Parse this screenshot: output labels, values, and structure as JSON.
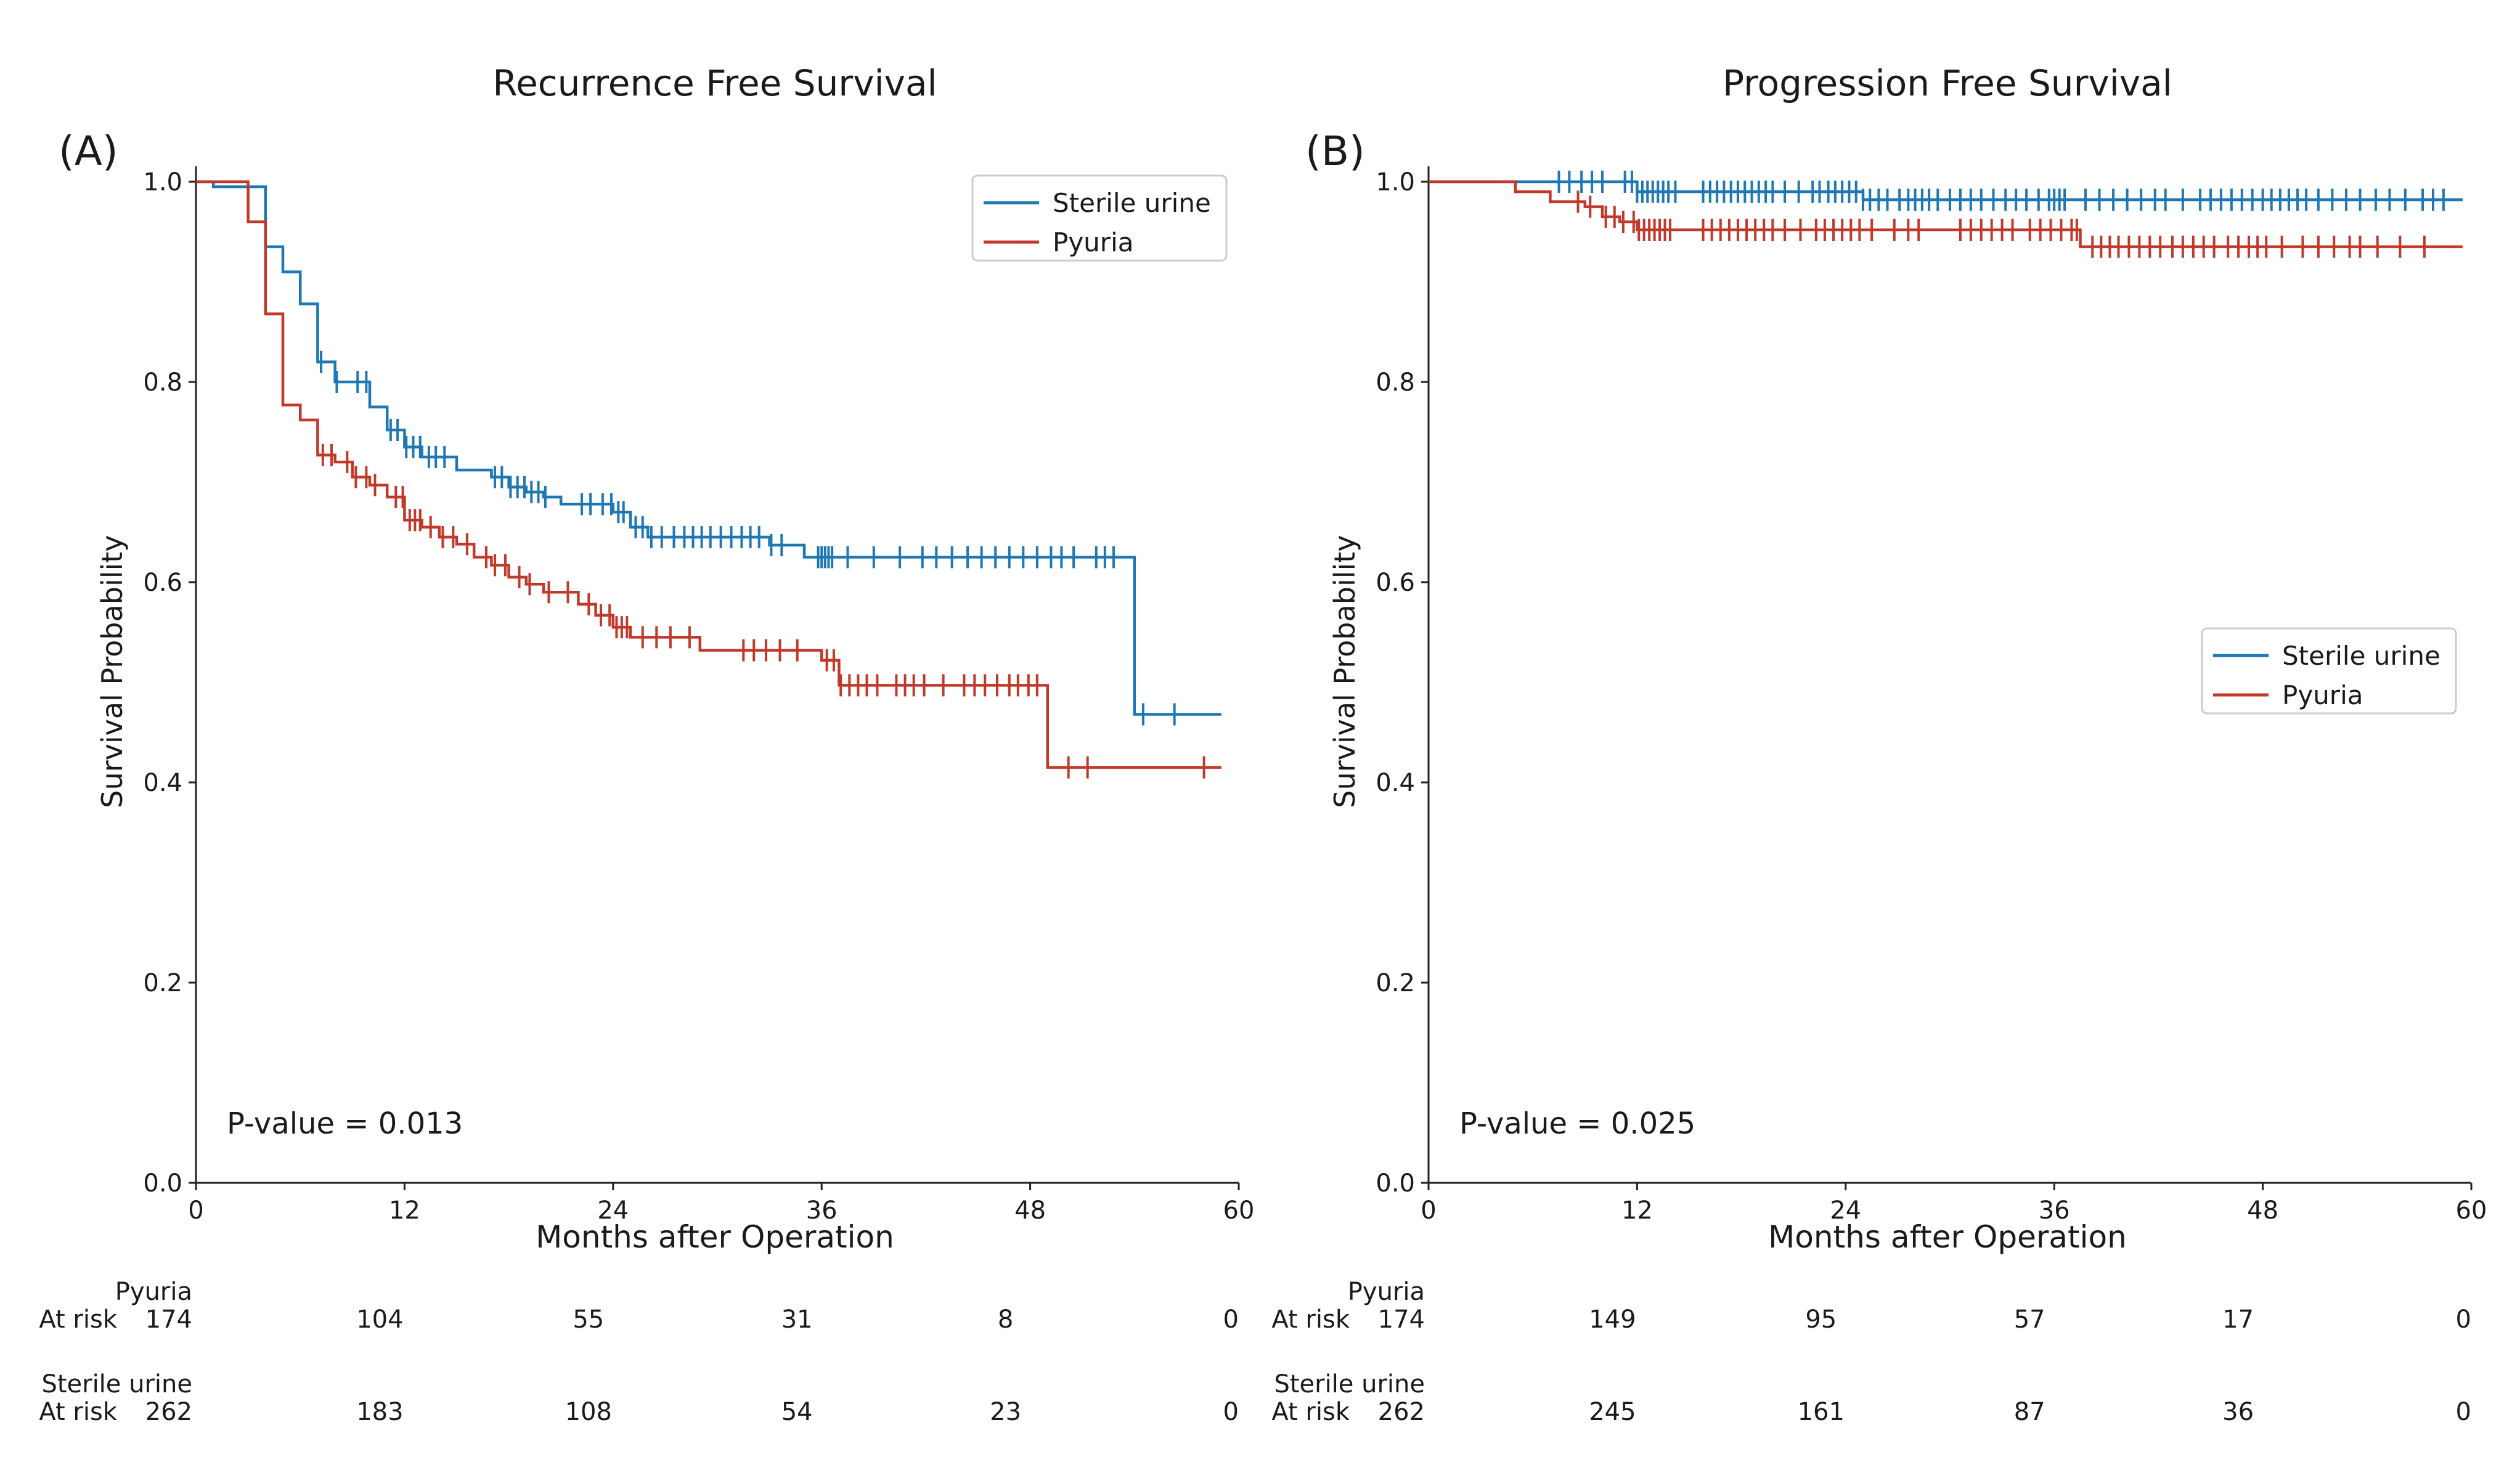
{
  "chart_data": [
    {
      "type": "line",
      "subtype": "kaplan-meier",
      "panel_label": "(A)",
      "title": "Recurrence Free Survival",
      "xlabel": "Months after Operation",
      "ylabel": "Survival Probability",
      "xlim": [
        0,
        60
      ],
      "ylim": [
        0,
        1.0
      ],
      "xticks": [
        0,
        12,
        24,
        36,
        48,
        60
      ],
      "yticks": [
        0.0,
        0.2,
        0.4,
        0.6,
        0.8,
        1.0
      ],
      "legend_position": "top-right",
      "annotation": "P-value = 0.013",
      "series": [
        {
          "name": "Sterile urine",
          "color": "#1f77b4",
          "steps": [
            [
              0,
              1.0
            ],
            [
              1,
              0.995
            ],
            [
              4,
              0.935
            ],
            [
              5,
              0.91
            ],
            [
              6,
              0.878
            ],
            [
              7,
              0.82
            ],
            [
              8,
              0.8
            ],
            [
              10,
              0.775
            ],
            [
              11,
              0.752
            ],
            [
              12,
              0.735
            ],
            [
              13,
              0.725
            ],
            [
              15,
              0.712
            ],
            [
              17,
              0.705
            ],
            [
              18,
              0.695
            ],
            [
              19,
              0.69
            ],
            [
              20,
              0.685
            ],
            [
              21,
              0.678
            ],
            [
              24,
              0.67
            ],
            [
              25,
              0.655
            ],
            [
              26,
              0.645
            ],
            [
              33,
              0.637
            ],
            [
              35,
              0.625
            ],
            [
              54,
              0.468
            ],
            [
              59,
              0.468
            ]
          ],
          "censors": [
            7.2,
            8.1,
            9.3,
            9.8,
            11.2,
            11.6,
            12.1,
            12.5,
            12.9,
            13.4,
            13.8,
            14.3,
            17.2,
            17.6,
            18.1,
            18.5,
            18.9,
            19.3,
            19.7,
            20.1,
            22.2,
            22.7,
            23.4,
            23.9,
            24.3,
            24.6,
            25.3,
            25.7,
            26.2,
            26.8,
            27.5,
            28.1,
            28.6,
            29.1,
            29.6,
            30.2,
            30.8,
            31.4,
            31.9,
            32.4,
            33.1,
            33.7,
            35.8,
            36.0,
            36.2,
            36.4,
            36.6,
            37.5,
            39.0,
            40.5,
            41.8,
            42.6,
            43.5,
            44.4,
            45.2,
            46.0,
            46.8,
            47.6,
            48.4,
            49.2,
            49.8,
            50.5,
            51.8,
            52.3,
            52.8,
            54.5,
            56.3
          ]
        },
        {
          "name": "Pyuria",
          "color": "#c0392b",
          "steps": [
            [
              0,
              1.0
            ],
            [
              3,
              0.96
            ],
            [
              4,
              0.868
            ],
            [
              5,
              0.777
            ],
            [
              6,
              0.762
            ],
            [
              7,
              0.727
            ],
            [
              8,
              0.72
            ],
            [
              9,
              0.705
            ],
            [
              10,
              0.697
            ],
            [
              11,
              0.685
            ],
            [
              12,
              0.662
            ],
            [
              13,
              0.655
            ],
            [
              14,
              0.645
            ],
            [
              15,
              0.638
            ],
            [
              16,
              0.625
            ],
            [
              17,
              0.617
            ],
            [
              18,
              0.605
            ],
            [
              19,
              0.598
            ],
            [
              20,
              0.59
            ],
            [
              22,
              0.578
            ],
            [
              23,
              0.567
            ],
            [
              24,
              0.555
            ],
            [
              25,
              0.545
            ],
            [
              29,
              0.532
            ],
            [
              36,
              0.522
            ],
            [
              37,
              0.497
            ],
            [
              49,
              0.415
            ],
            [
              59,
              0.415
            ]
          ],
          "censors": [
            7.3,
            7.8,
            8.7,
            9.2,
            9.8,
            10.3,
            11.5,
            11.9,
            12.3,
            12.6,
            12.9,
            13.5,
            14.2,
            14.8,
            15.6,
            16.7,
            17.2,
            17.8,
            18.6,
            19.2,
            20.3,
            21.4,
            22.6,
            23.3,
            23.8,
            24.2,
            24.5,
            24.8,
            25.7,
            26.5,
            27.3,
            28.4,
            31.5,
            32.1,
            32.8,
            33.6,
            34.6,
            36.3,
            36.7,
            37.1,
            37.6,
            38.1,
            38.6,
            39.2,
            40.3,
            40.8,
            41.3,
            41.9,
            43.0,
            44.2,
            44.8,
            45.4,
            46.1,
            46.8,
            47.3,
            47.9,
            48.4,
            50.2,
            51.3,
            58.0
          ]
        }
      ],
      "at_risk": {
        "times": [
          0,
          12,
          24,
          36,
          48,
          60
        ],
        "groups": [
          {
            "name": "Pyuria",
            "row_label": "At risk",
            "counts": [
              "174",
              "104",
              "55",
              "31",
              "8",
              "0"
            ]
          },
          {
            "name": "Sterile urine",
            "row_label": "At risk",
            "counts": [
              "262",
              "183",
              "108",
              "54",
              "23",
              "0"
            ]
          }
        ]
      }
    },
    {
      "type": "line",
      "subtype": "kaplan-meier",
      "panel_label": "(B)",
      "title": "Progression Free Survival",
      "xlabel": "Months after Operation",
      "ylabel": "Survival Probability",
      "xlim": [
        0,
        60
      ],
      "ylim": [
        0,
        1.0
      ],
      "xticks": [
        0,
        12,
        24,
        36,
        48,
        60
      ],
      "yticks": [
        0.0,
        0.2,
        0.4,
        0.6,
        0.8,
        1.0
      ],
      "legend_position": "center-right",
      "annotation": "P-value = 0.025",
      "series": [
        {
          "name": "Sterile urine",
          "color": "#1f77b4",
          "steps": [
            [
              0,
              1.0
            ],
            [
              12,
              0.99
            ],
            [
              25,
              0.982
            ],
            [
              59.5,
              0.982
            ]
          ],
          "censors": [
            7.5,
            8.1,
            8.8,
            9.4,
            10.0,
            11.3,
            11.7,
            12.0,
            12.3,
            12.6,
            12.9,
            13.2,
            13.5,
            13.8,
            14.2,
            15.8,
            16.2,
            16.6,
            17.0,
            17.4,
            17.8,
            18.2,
            18.6,
            19.0,
            19.4,
            19.8,
            20.5,
            21.3,
            22.1,
            22.5,
            23.0,
            23.4,
            23.8,
            24.2,
            24.6,
            25.0,
            25.4,
            25.9,
            26.4,
            27.1,
            27.6,
            28.0,
            28.4,
            28.8,
            29.3,
            30.0,
            30.6,
            31.2,
            31.8,
            32.5,
            33.2,
            33.8,
            34.4,
            35.1,
            35.7,
            36.0,
            36.3,
            36.6,
            37.8,
            38.6,
            39.4,
            40.2,
            41.0,
            41.8,
            42.4,
            43.4,
            44.4,
            45.0,
            45.6,
            46.2,
            46.8,
            47.4,
            48.0,
            48.5,
            49.0,
            49.5,
            50.0,
            50.5,
            51.2,
            52.0,
            52.8,
            53.6,
            54.5,
            55.3,
            56.2,
            57.2,
            57.8,
            58.4
          ]
        },
        {
          "name": "Pyuria",
          "color": "#c0392b",
          "steps": [
            [
              0,
              1.0
            ],
            [
              5,
              0.99
            ],
            [
              7,
              0.98
            ],
            [
              9,
              0.975
            ],
            [
              10,
              0.965
            ],
            [
              11,
              0.96
            ],
            [
              12,
              0.952
            ],
            [
              37.5,
              0.935
            ],
            [
              59.5,
              0.935
            ]
          ],
          "censors": [
            8.6,
            9.3,
            10.2,
            10.7,
            11.2,
            11.8,
            12.1,
            12.4,
            12.7,
            13.0,
            13.3,
            13.6,
            13.9,
            15.8,
            16.3,
            16.8,
            17.3,
            17.8,
            18.3,
            18.8,
            19.3,
            19.8,
            20.5,
            21.4,
            22.3,
            22.8,
            23.3,
            23.8,
            24.3,
            24.8,
            25.5,
            26.8,
            27.6,
            28.2,
            30.6,
            31.2,
            31.8,
            32.4,
            33.0,
            33.6,
            34.6,
            35.2,
            35.8,
            36.4,
            37.0,
            37.3,
            38.2,
            38.7,
            39.2,
            39.7,
            40.3,
            40.9,
            41.5,
            42.1,
            42.8,
            43.4,
            44.0,
            44.6,
            45.2,
            46.0,
            46.6,
            47.2,
            47.7,
            48.2,
            49.1,
            50.3,
            51.2,
            52.1,
            53.0,
            53.6,
            54.6,
            55.9,
            57.3
          ]
        }
      ],
      "at_risk": {
        "times": [
          0,
          12,
          24,
          36,
          48,
          60
        ],
        "groups": [
          {
            "name": "Pyuria",
            "row_label": "At risk",
            "counts": [
              "174",
              "149",
              "95",
              "57",
              "17",
              "0"
            ]
          },
          {
            "name": "Sterile urine",
            "row_label": "At risk",
            "counts": [
              "262",
              "245",
              "161",
              "87",
              "36",
              "0"
            ]
          }
        ]
      }
    }
  ]
}
